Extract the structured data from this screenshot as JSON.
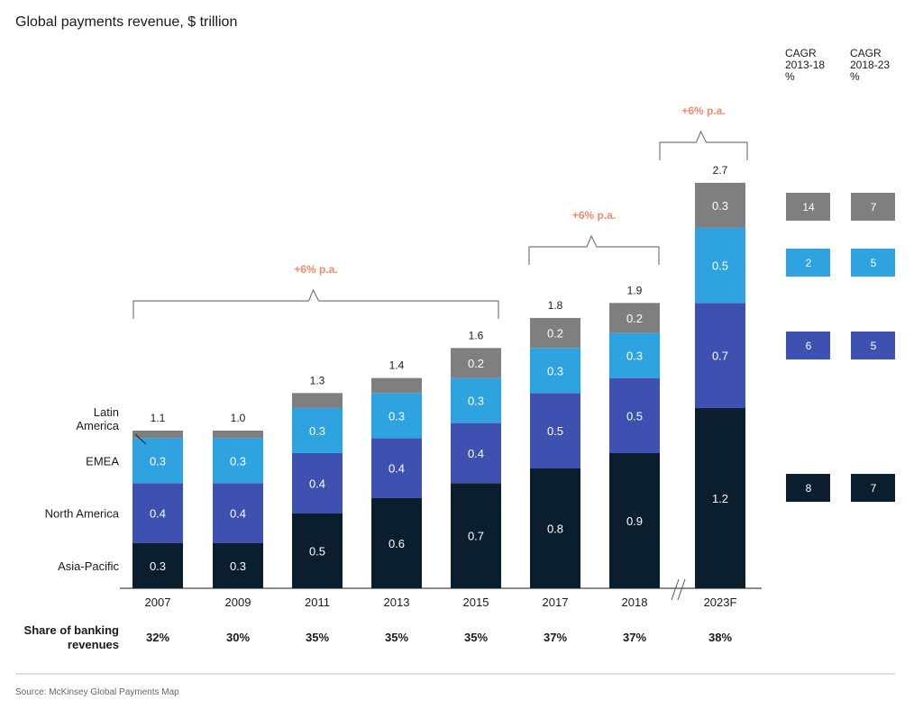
{
  "chart_data": {
    "type": "bar",
    "stacked": true,
    "title": "Global payments revenue, $ trillion",
    "categories": [
      "2007",
      "2009",
      "2011",
      "2013",
      "2015",
      "2017",
      "2018",
      "2023F"
    ],
    "series": [
      {
        "name": "Asia-Pacific",
        "color": "#0b1e2e",
        "values": [
          0.3,
          0.3,
          0.5,
          0.6,
          0.7,
          0.8,
          0.9,
          1.2
        ],
        "labels": [
          "0.3",
          "0.3",
          "0.5",
          "0.6",
          "0.7",
          "0.8",
          "0.9",
          "1.2"
        ]
      },
      {
        "name": "North America",
        "color": "#3f51b0",
        "values": [
          0.4,
          0.4,
          0.4,
          0.4,
          0.4,
          0.5,
          0.5,
          0.7
        ],
        "labels": [
          "0.4",
          "0.4",
          "0.4",
          "0.4",
          "0.4",
          "0.5",
          "0.5",
          "0.7"
        ]
      },
      {
        "name": "EMEA",
        "color": "#2fa3df",
        "values": [
          0.3,
          0.3,
          0.3,
          0.3,
          0.3,
          0.3,
          0.3,
          0.5
        ],
        "labels": [
          "0.3",
          "0.3",
          "0.3",
          "0.3",
          "0.3",
          "0.3",
          "0.3",
          "0.5"
        ]
      },
      {
        "name": "Latin\nAmerica",
        "color": "#7f7f7f",
        "values": [
          0.05,
          0.05,
          0.1,
          0.1,
          0.2,
          0.2,
          0.2,
          0.3
        ],
        "labels": [
          "",
          "",
          "",
          "",
          "0.2",
          "0.2",
          "0.2",
          "0.3"
        ]
      }
    ],
    "totals": [
      "1.1",
      "1.0",
      "1.3",
      "1.4",
      "1.6",
      "1.8",
      "1.9",
      "2.7"
    ],
    "share_label": "Share of banking\nrevenues",
    "shares": [
      "32%",
      "30%",
      "35%",
      "35%",
      "35%",
      "37%",
      "37%",
      "38%"
    ],
    "brackets": [
      {
        "label": "+6% p.a.",
        "from": "2007",
        "to": "2015"
      },
      {
        "label": "+6% p.a.",
        "from": "2017",
        "to": "2018"
      },
      {
        "label": "+6% p.a.",
        "from": "2023F",
        "to": "2023F"
      }
    ],
    "cagr": {
      "headers": [
        "CAGR\n2013-18\n%",
        "CAGR\n2018-23\n%"
      ],
      "rows": [
        {
          "series": "Latin America",
          "color": "#7f7f7f",
          "values": [
            "14",
            "7"
          ]
        },
        {
          "series": "EMEA",
          "color": "#2fa3df",
          "values": [
            "2",
            "5"
          ]
        },
        {
          "series": "North America",
          "color": "#3f51b0",
          "values": [
            "6",
            "5"
          ]
        },
        {
          "series": "Asia-Pacific",
          "color": "#0b1e2e",
          "values": [
            "8",
            "7"
          ]
        }
      ]
    },
    "axis_break_before": "2023F",
    "grid": false,
    "legend": "left, inline labels",
    "source": "Source: McKinsey Global Payments Map",
    "accent_color": "#f08c6c"
  }
}
